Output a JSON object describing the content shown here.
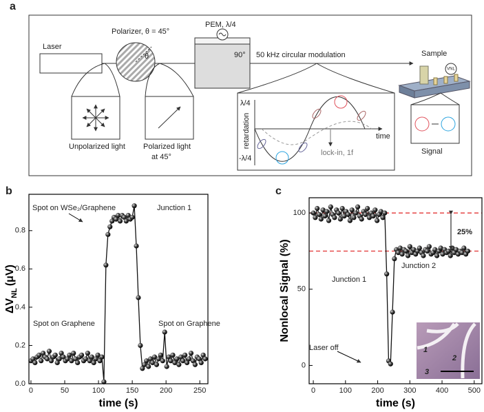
{
  "panel_labels": [
    "a",
    "b",
    "c"
  ],
  "diagram": {
    "laser": "Laser",
    "polarizer": "Polarizer, θ = 45°",
    "theta": "θ",
    "pem": "PEM, λ/4",
    "pem_angle": "90°",
    "modulation": "50 kHz circular modulation",
    "sample": "Sample",
    "vnl": "VNL",
    "unpolarized": "Unpolarized light",
    "polarized": [
      "Polarized light",
      "at 45°"
    ],
    "signal": "Signal",
    "inset": {
      "top": "λ/4",
      "y_label": "retardation",
      "bottom": "-λ/4",
      "x_label": "time",
      "lockin": "lock-in, 1f"
    }
  },
  "chart_data": [
    {
      "type": "line",
      "x_label": "time (s)",
      "y_label": {
        "main": "ΔV",
        "sub": "NL",
        "unit": "(μV)"
      },
      "xlim": [
        -3,
        262
      ],
      "xticks": [
        0,
        50,
        100,
        150,
        200,
        250
      ],
      "ylim": [
        0,
        0.99
      ],
      "yticks": [
        {
          "value": 0,
          "label": "0.0"
        },
        0.2,
        0.4,
        0.6,
        0.8
      ],
      "x": [
        0,
        3,
        6,
        9,
        12,
        15,
        18,
        21,
        24,
        27,
        30,
        33,
        36,
        39,
        42,
        45,
        48,
        51,
        54,
        57,
        60,
        63,
        66,
        69,
        72,
        75,
        78,
        81,
        84,
        87,
        90,
        93,
        96,
        99,
        102,
        105,
        108,
        111,
        114,
        117,
        120,
        123,
        126,
        129,
        132,
        135,
        138,
        141,
        144,
        147,
        150,
        153,
        156,
        159,
        162,
        165,
        168,
        171,
        174,
        177,
        180,
        183,
        186,
        189,
        192,
        195,
        198,
        201,
        204,
        207,
        210,
        213,
        216,
        219,
        222,
        225,
        228,
        231,
        234,
        237,
        240,
        243,
        246,
        249,
        252,
        255,
        258
      ],
      "series": [
        {
          "color": "#111111",
          "values": [
            0.12,
            0.13,
            0.11,
            0.14,
            0.15,
            0.12,
            0.16,
            0.14,
            0.13,
            0.17,
            0.12,
            0.14,
            0.15,
            0.11,
            0.13,
            0.16,
            0.14,
            0.12,
            0.13,
            0.15,
            0.12,
            0.16,
            0.13,
            0.11,
            0.14,
            0.15,
            0.12,
            0.13,
            0.16,
            0.12,
            0.14,
            0.11,
            0.13,
            0.15,
            0.12,
            0.14,
            0.01,
            0.62,
            0.78,
            0.82,
            0.85,
            0.87,
            0.86,
            0.88,
            0.85,
            0.88,
            0.87,
            0.85,
            0.88,
            0.86,
            0.87,
            0.93,
            0.72,
            0.45,
            0.2,
            0.08,
            0.1,
            0.12,
            0.09,
            0.13,
            0.11,
            0.14,
            0.1,
            0.13,
            0.15,
            0.12,
            0.27,
            0.09,
            0.14,
            0.12,
            0.15,
            0.11,
            0.13,
            0.1,
            0.14,
            0.12,
            0.15,
            0.11,
            0.13,
            0.16,
            0.12,
            0.1,
            0.14,
            0.13,
            0.11,
            0.15,
            0.13
          ]
        }
      ],
      "annotations": [
        "Spot on WSe₂/Graphene",
        "Junction 1",
        "Spot on Graphene",
        "Spot on Graphene"
      ]
    },
    {
      "type": "line",
      "x_label": "time (s)",
      "y_label": "Nonlocal Signal (%)",
      "xlim": [
        -13,
        524
      ],
      "xticks": [
        0,
        100,
        200,
        300,
        400,
        500
      ],
      "ylim": [
        -12,
        110
      ],
      "yticks": [
        0,
        50,
        100
      ],
      "x": [
        0,
        6,
        12,
        18,
        24,
        30,
        36,
        42,
        48,
        54,
        60,
        66,
        72,
        78,
        84,
        90,
        96,
        102,
        108,
        114,
        120,
        126,
        132,
        138,
        144,
        150,
        156,
        162,
        168,
        174,
        180,
        186,
        192,
        198,
        204,
        210,
        216,
        222,
        228,
        234,
        240,
        246,
        252,
        258,
        264,
        270,
        276,
        282,
        288,
        294,
        300,
        306,
        312,
        318,
        324,
        330,
        336,
        342,
        348,
        354,
        360,
        366,
        372,
        378,
        384,
        390,
        396,
        402,
        408,
        414,
        420,
        426,
        432,
        438,
        444,
        450,
        456,
        462,
        468,
        474,
        480
      ],
      "series": [
        {
          "color": "#111111",
          "values": [
            100,
            97,
            103,
            99,
            96,
            102,
            98,
            101,
            95,
            104,
            99,
            97,
            102,
            100,
            96,
            103,
            98,
            101,
            99,
            95,
            102,
            97,
            100,
            104,
            98,
            96,
            101,
            99,
            103,
            97,
            100,
            98,
            102,
            95,
            99,
            101,
            97,
            100,
            60,
            3,
            1,
            35,
            70,
            76,
            74,
            77,
            73,
            76,
            75,
            72,
            78,
            74,
            76,
            73,
            75,
            77,
            74,
            72,
            76,
            75,
            78,
            73,
            74,
            76,
            72,
            75,
            77,
            73,
            76,
            74,
            75,
            72,
            77,
            74,
            76,
            73,
            75,
            74,
            77,
            73,
            75
          ]
        }
      ],
      "reference_lines": {
        "values": [
          100,
          75
        ],
        "color": "#e02020"
      },
      "annotations": [
        "Junction 1",
        "Junction 2",
        "Laser off",
        "25%"
      ],
      "inset_labels": [
        "1",
        "2",
        "3"
      ]
    }
  ]
}
